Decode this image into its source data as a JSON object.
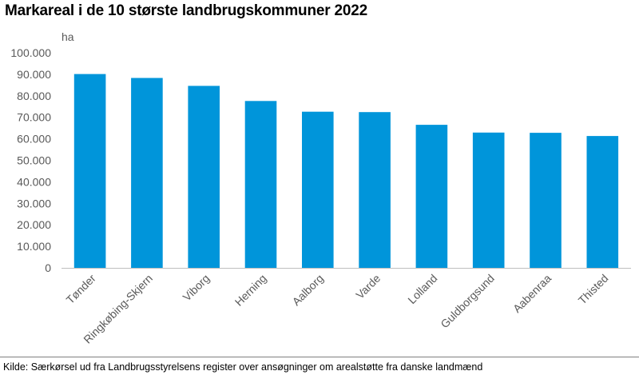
{
  "chart_data": {
    "type": "bar",
    "title": "Markareal i de 10 største landbrugskommuner 2022",
    "ylabel": "ha",
    "xlabel": "",
    "categories": [
      "Tønder",
      "Ringkøbing-Skjern",
      "Viborg",
      "Herning",
      "Aalborg",
      "Varde",
      "Lolland",
      "Guldborgsund",
      "Aabenraa",
      "Thisted"
    ],
    "values": [
      90100,
      88300,
      84600,
      77600,
      72600,
      72400,
      66500,
      62900,
      62800,
      61300
    ],
    "ylim": [
      0,
      100000
    ],
    "yticks": [
      0,
      10000,
      20000,
      30000,
      40000,
      50000,
      60000,
      70000,
      80000,
      90000,
      100000
    ],
    "ytick_labels": [
      "0",
      "10.000",
      "20.000",
      "30.000",
      "40.000",
      "50.000",
      "60.000",
      "70.000",
      "80.000",
      "90.000",
      "100.000"
    ],
    "grid": false,
    "bar_color": "#0095DA",
    "source": "Kilde: Særkørsel ud fra Landbrugsstyrelsens register over ansøgninger om arealstøtte fra danske landmænd"
  }
}
